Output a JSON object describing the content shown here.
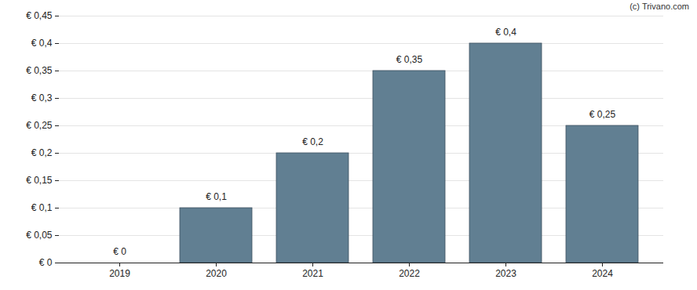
{
  "chart_data": {
    "type": "bar",
    "caption": "(c) Trivano.com",
    "categories": [
      "2019",
      "2020",
      "2021",
      "2022",
      "2023",
      "2024"
    ],
    "values": [
      0,
      0.1,
      0.2,
      0.35,
      0.4,
      0.25
    ],
    "value_labels": [
      "€ 0",
      "€ 0,1",
      "€ 0,2",
      "€ 0,35",
      "€ 0,4",
      "€ 0,25"
    ],
    "data_labels": true,
    "color": "#617f92",
    "ylim": [
      0,
      0.45
    ],
    "yticks": [
      {
        "value": 0,
        "label": "€ 0"
      },
      {
        "value": 0.05,
        "label": "€ 0,05"
      },
      {
        "value": 0.1,
        "label": "€ 0,1"
      },
      {
        "value": 0.15,
        "label": "€ 0,15"
      },
      {
        "value": 0.2,
        "label": "€ 0,2"
      },
      {
        "value": 0.25,
        "label": "€ 0,25"
      },
      {
        "value": 0.3,
        "label": "€ 0,3"
      },
      {
        "value": 0.35,
        "label": "€ 0,35"
      },
      {
        "value": 0.4,
        "label": "€ 0,4"
      },
      {
        "value": 0.45,
        "label": "€ 0,45"
      }
    ],
    "grid": true
  }
}
